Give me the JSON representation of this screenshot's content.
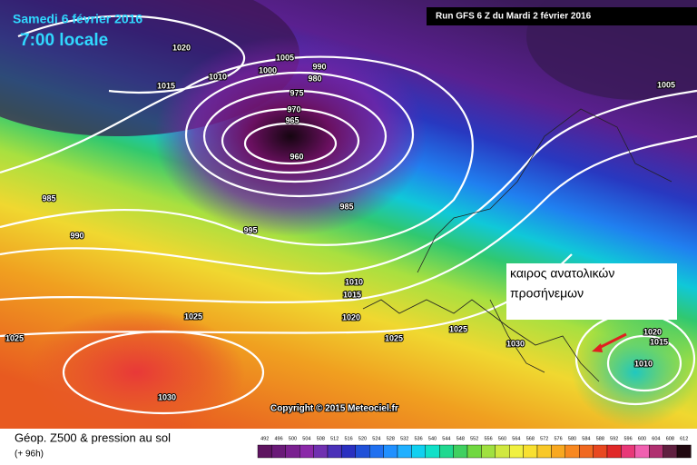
{
  "header": {
    "date": "Samedi 6 février 2016",
    "time": "7:00 locale",
    "run": "Run GFS 6 Z du Mardi 2 février 2016"
  },
  "isobars": [
    1020,
    1015,
    1010,
    1005,
    1000,
    990,
    980,
    975,
    970,
    965,
    960,
    985,
    990,
    995,
    985,
    1010,
    1015,
    1020,
    1025,
    1025,
    1025,
    1025,
    1030,
    1030,
    1020,
    1015,
    1010,
    1005
  ],
  "annotation": {
    "line1": "καιρος ανατολικών",
    "line2": "προσήνεμων"
  },
  "copyright": "Copyright © 2015 Meteociel.fr",
  "footer": {
    "title": "Géop. Z500 & pression au sol",
    "lead": "(+ 96h)"
  },
  "legend": {
    "values": [
      492,
      496,
      500,
      504,
      508,
      512,
      516,
      520,
      524,
      528,
      532,
      536,
      540,
      544,
      548,
      552,
      556,
      560,
      564,
      568,
      572,
      576,
      580,
      584,
      588,
      592,
      596,
      600,
      604,
      608,
      612
    ],
    "colors": [
      "#5e1460",
      "#6a1a78",
      "#7a2090",
      "#8a28a8",
      "#7030b0",
      "#4a30b8",
      "#2a30c0",
      "#2050d8",
      "#2070f0",
      "#2090ff",
      "#20b0ff",
      "#10d0f0",
      "#10e0c8",
      "#20d890",
      "#40d060",
      "#70d840",
      "#a0e040",
      "#d0e840",
      "#f0f040",
      "#f8e030",
      "#f8c828",
      "#f8a820",
      "#f88820",
      "#f06820",
      "#e84820",
      "#e02828",
      "#e83878",
      "#f060b0",
      "#b03070",
      "#602040",
      "#200810"
    ]
  }
}
